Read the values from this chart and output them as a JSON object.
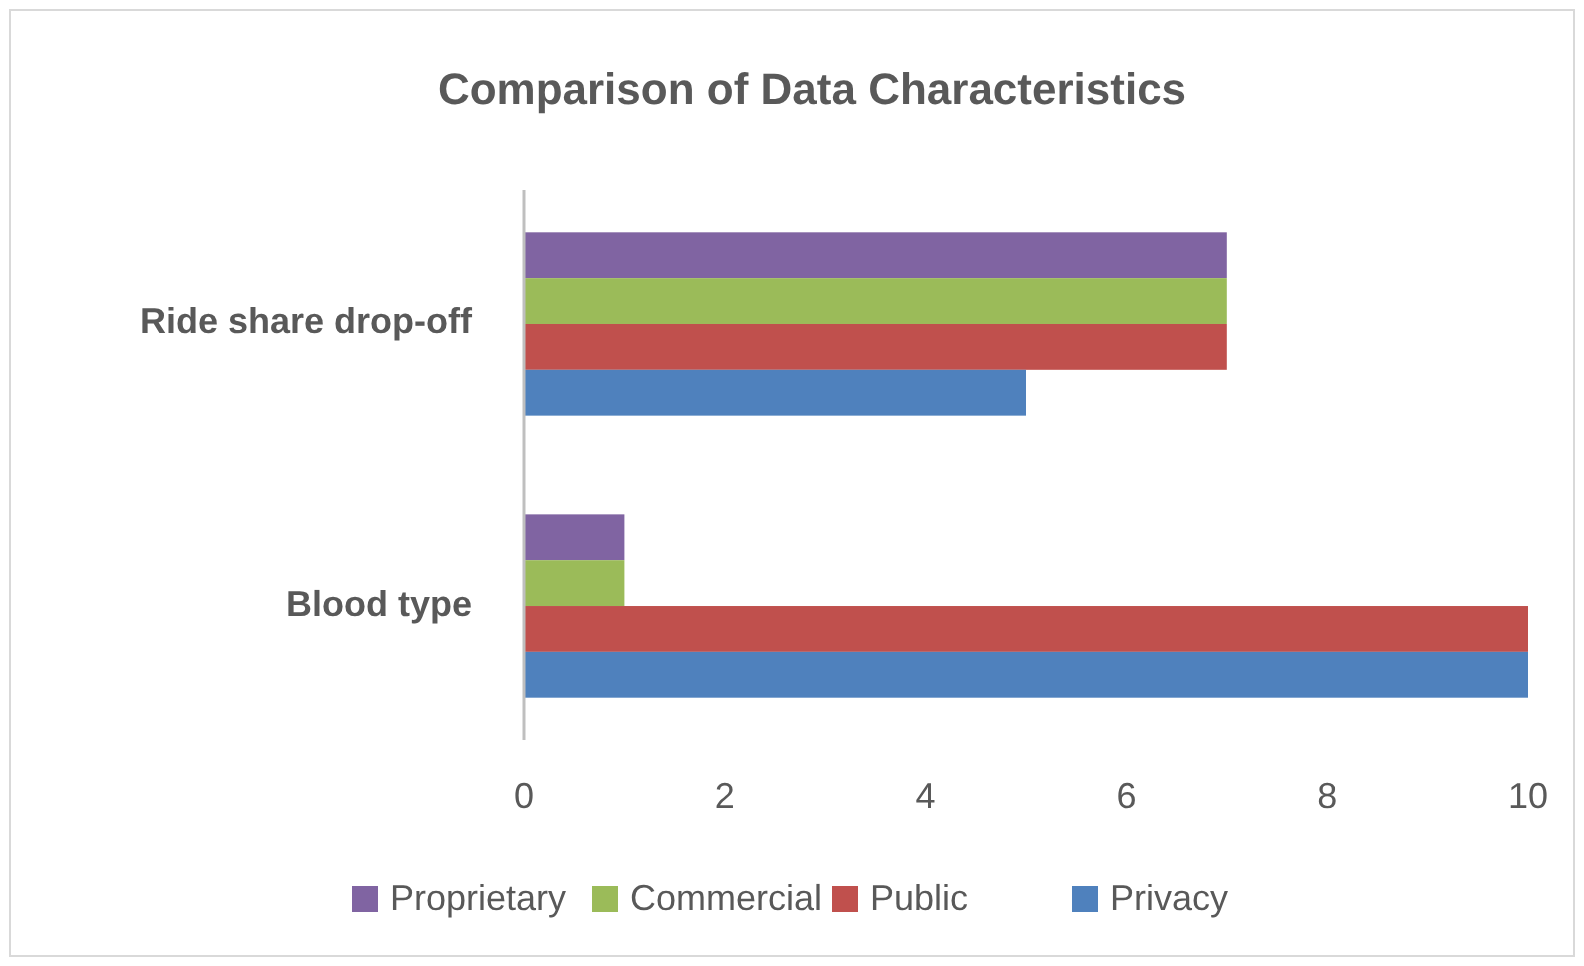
{
  "chart_data": {
    "type": "bar",
    "orientation": "horizontal",
    "title": "Comparison of Data Characteristics",
    "categories": [
      "Ride share drop-off",
      "Blood type"
    ],
    "series": [
      {
        "name": "Proprietary",
        "color": "#8064a2",
        "values": [
          7,
          1
        ]
      },
      {
        "name": "Commercial",
        "color": "#9bbb59",
        "values": [
          7,
          1
        ]
      },
      {
        "name": "Public",
        "color": "#c0504d",
        "values": [
          7,
          10
        ]
      },
      {
        "name": "Privacy",
        "color": "#4f81bd",
        "values": [
          5,
          10
        ]
      }
    ],
    "xlim": [
      0,
      10
    ],
    "xticks": [
      0,
      2,
      4,
      6,
      8,
      10
    ],
    "grid": false,
    "legend": "bottom"
  }
}
